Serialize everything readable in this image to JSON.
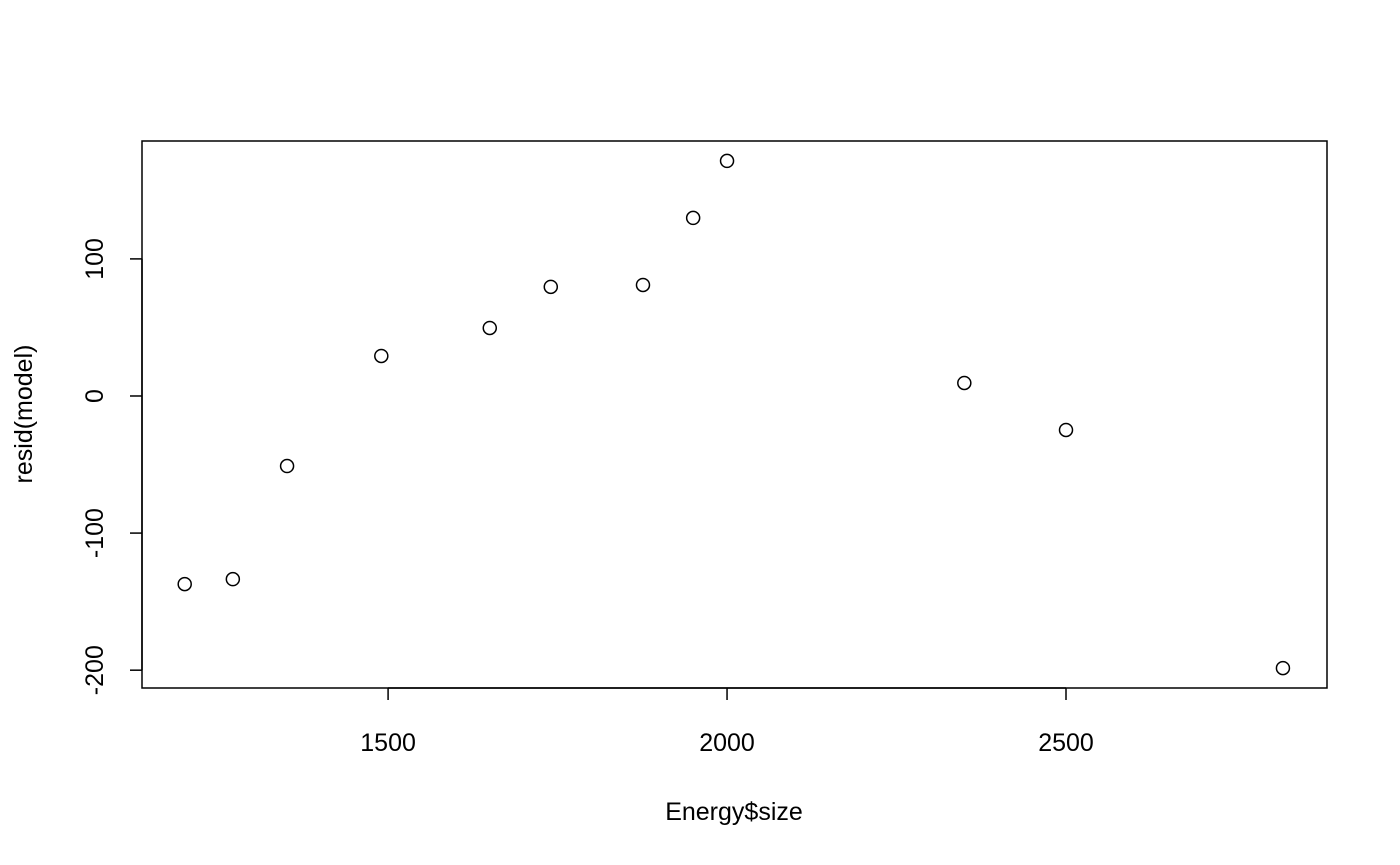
{
  "chart_data": {
    "type": "scatter",
    "x_label": "Energy$size",
    "y_label": "resid(model)",
    "x": [
      1200,
      1271,
      1351,
      1490,
      1650,
      1740,
      1876,
      1950,
      2000,
      2350,
      2500,
      2820
    ],
    "values": [
      -137.2,
      -133.6,
      -51.1,
      29.2,
      49.6,
      79.6,
      81,
      129.9,
      171.5,
      9.5,
      -24.8,
      -198.5
    ],
    "color": "#000000",
    "xlim": [
      1137,
      2885
    ],
    "xticks": [
      1500,
      2000,
      2500
    ],
    "ylim": [
      -213,
      186
    ],
    "yticks": [
      -200,
      -100,
      0,
      100
    ]
  }
}
